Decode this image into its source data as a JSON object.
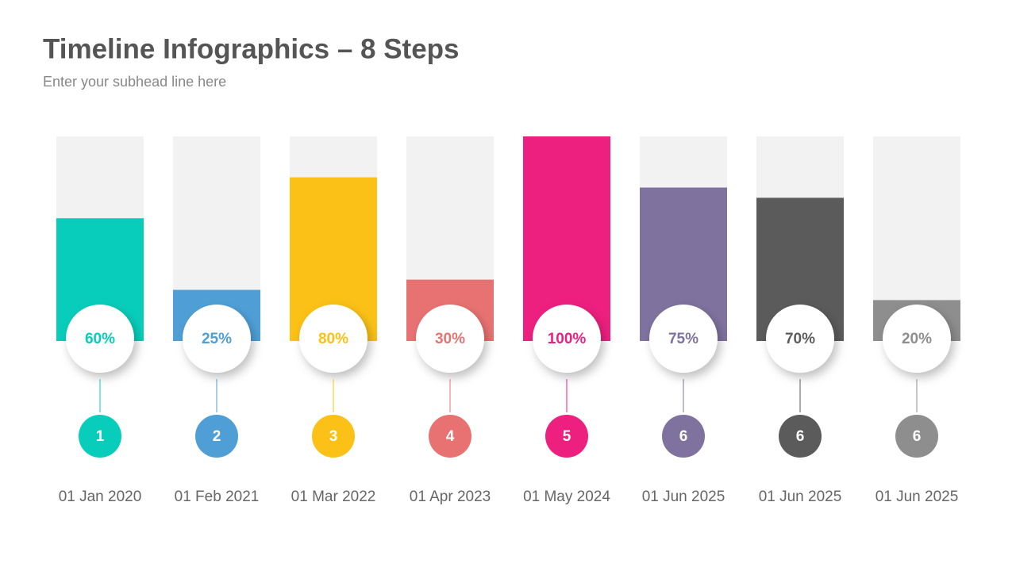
{
  "chart_data": {
    "type": "bar",
    "title": "Timeline Infographics – 8 Steps",
    "subtitle": "Enter your subhead line here",
    "categories": [
      "01 Jan 2020",
      "01 Feb 2021",
      "01 Mar 2022",
      "01 Apr 2023",
      "01 May 2024",
      "01 Jun 2025",
      "01 Jun 2025",
      "01 Jun 2025"
    ],
    "steps": [
      "1",
      "2",
      "3",
      "4",
      "5",
      "6",
      "6",
      "6"
    ],
    "values": [
      60,
      25,
      80,
      30,
      100,
      75,
      70,
      20
    ],
    "value_labels": [
      "60%",
      "25%",
      "80%",
      "30%",
      "100%",
      "75%",
      "70%",
      "20%"
    ],
    "colors": [
      "#08cdba",
      "#4f9fd6",
      "#fbc116",
      "#e87272",
      "#ed1f7f",
      "#7f729e",
      "#5b5b5b",
      "#8e8e8e"
    ],
    "ylim": [
      0,
      100
    ]
  }
}
